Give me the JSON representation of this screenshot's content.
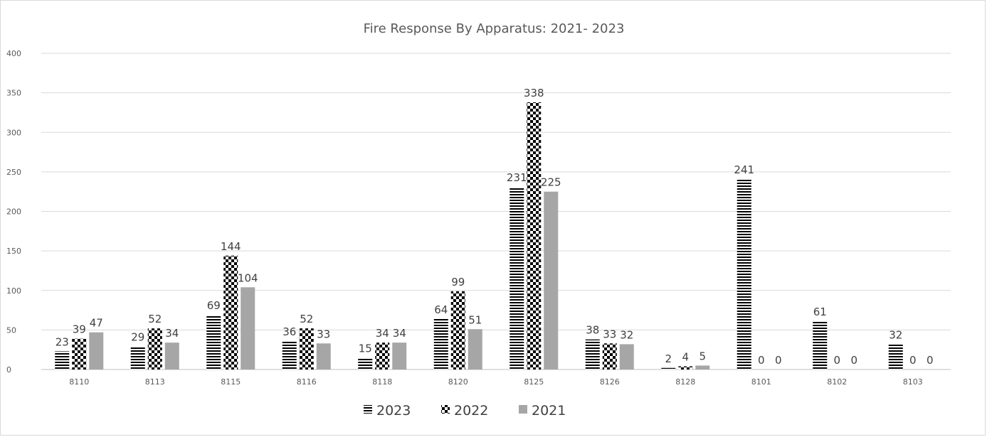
{
  "chart_data": {
    "type": "bar",
    "title": "Fire Response By Apparatus: 2021- 2023",
    "xlabel": "",
    "ylabel": "",
    "ylim": [
      0,
      400
    ],
    "yticks": [
      0,
      50,
      100,
      150,
      200,
      250,
      300,
      350,
      400
    ],
    "grid": true,
    "legend_position": "bottom",
    "categories": [
      "8110",
      "8113",
      "8115",
      "8116",
      "8118",
      "8120",
      "8125",
      "8126",
      "8128",
      "8101",
      "8102",
      "8103"
    ],
    "series": [
      {
        "name": "2023",
        "pattern": "horizontal-stripes",
        "color": "#000000",
        "values": [
          23,
          29,
          69,
          36,
          15,
          64,
          231,
          38,
          2,
          241,
          61,
          32
        ]
      },
      {
        "name": "2022",
        "pattern": "checkerboard",
        "color": "#000000",
        "values": [
          39,
          52,
          144,
          52,
          34,
          99,
          338,
          33,
          4,
          0,
          0,
          0
        ]
      },
      {
        "name": "2021",
        "pattern": "solid",
        "color": "#a6a6a6",
        "values": [
          47,
          34,
          104,
          33,
          34,
          51,
          225,
          32,
          5,
          0,
          0,
          0
        ]
      }
    ]
  }
}
